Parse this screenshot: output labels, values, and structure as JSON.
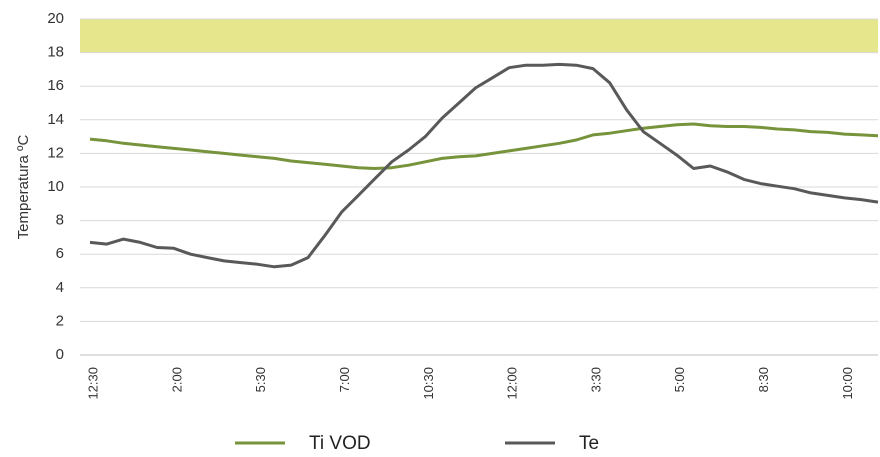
{
  "chart_data": {
    "type": "line",
    "y_label": "Temperatura ºC",
    "categories": [
      "12:30",
      null,
      null,
      null,
      null,
      "2:00",
      null,
      null,
      null,
      null,
      "5:30",
      null,
      null,
      null,
      null,
      "7:00",
      null,
      null,
      null,
      null,
      "10:30",
      null,
      null,
      null,
      null,
      "12:00",
      null,
      null,
      null,
      null,
      "3:30",
      null,
      null,
      null,
      null,
      "5:00",
      null,
      null,
      null,
      null,
      "8:30",
      null,
      null,
      null,
      null,
      "10:00",
      null,
      null
    ],
    "series": [
      {
        "name": "Ti VOD",
        "color": "#77933c",
        "values": [
          12.85,
          12.75,
          12.6,
          12.5,
          12.4,
          12.3,
          12.2,
          12.1,
          12.0,
          11.9,
          11.8,
          11.7,
          11.55,
          11.45,
          11.35,
          11.25,
          11.15,
          11.1,
          11.15,
          11.3,
          11.5,
          11.7,
          11.8,
          11.85,
          12.0,
          12.15,
          12.3,
          12.45,
          12.6,
          12.8,
          13.1,
          13.2,
          13.35,
          13.5,
          13.6,
          13.7,
          13.75,
          13.65,
          13.6,
          13.6,
          13.55,
          13.45,
          13.4,
          13.3,
          13.25,
          13.15,
          13.1,
          13.05
        ]
      },
      {
        "name": "Te",
        "color": "#595959",
        "values": [
          6.7,
          6.6,
          6.9,
          6.7,
          6.4,
          6.35,
          6.0,
          5.8,
          5.6,
          5.5,
          5.4,
          5.25,
          5.35,
          5.8,
          7.1,
          8.5,
          9.5,
          10.5,
          11.5,
          12.2,
          13.0,
          14.1,
          15.0,
          15.9,
          16.5,
          17.1,
          17.25,
          17.25,
          17.3,
          17.25,
          17.05,
          16.2,
          14.6,
          13.3,
          12.6,
          11.9,
          11.1,
          11.25,
          10.9,
          10.45,
          10.2,
          10.05,
          9.9,
          9.65,
          9.5,
          9.35,
          9.25,
          9.1
        ]
      }
    ],
    "band": [
      18,
      20
    ],
    "band_color": "#e6e68c",
    "ylim": [
      0,
      20
    ],
    "yticks": [
      0,
      2,
      4,
      6,
      8,
      10,
      12,
      14,
      16,
      18,
      20
    ],
    "grid": true,
    "legend": "bottom"
  }
}
